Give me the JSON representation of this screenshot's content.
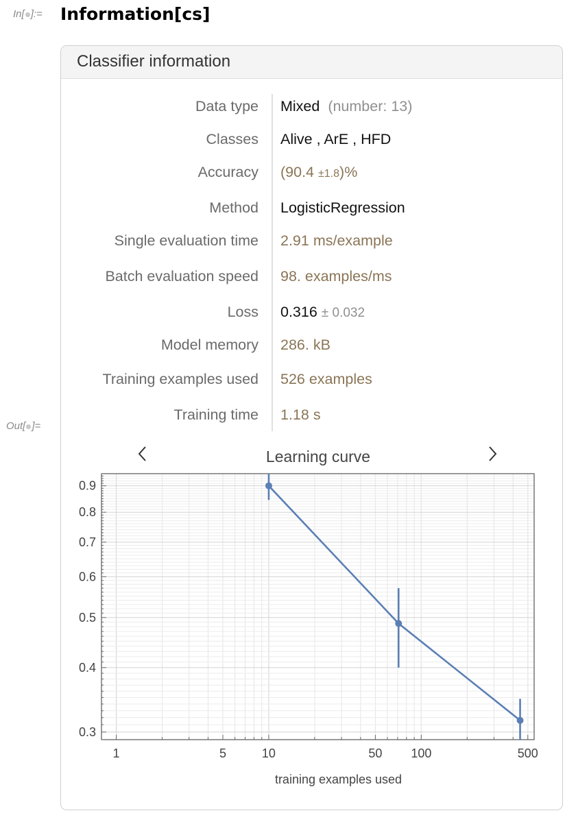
{
  "input": {
    "prompt_label_left": "In[",
    "prompt_label_right": "]:=",
    "code": "Information[cs]"
  },
  "output": {
    "prompt_label_left": "Out[",
    "prompt_label_right": "]="
  },
  "panel": {
    "title": "Classifier information",
    "rows": {
      "data_type": {
        "key": "Data type",
        "value": "Mixed",
        "note": "(number: 13)"
      },
      "classes": {
        "key": "Classes",
        "values": [
          "Alive",
          "ArE",
          "HFD"
        ],
        "separator": " , "
      },
      "accuracy": {
        "key": "Accuracy",
        "open": "(90.4",
        "pm": "±1.8",
        "close": ")%"
      },
      "method": {
        "key": "Method",
        "value": "LogisticRegression"
      },
      "single_eval": {
        "key": "Single evaluation time",
        "value": "2.91 ms/example"
      },
      "batch_eval": {
        "key": "Batch evaluation speed",
        "value": "98. examples/ms"
      },
      "loss": {
        "key": "Loss",
        "value": "0.316",
        "pm": "± 0.032"
      },
      "model_memory": {
        "key": "Model memory",
        "value": "286. kB"
      },
      "training_examples": {
        "key": "Training examples used",
        "value": "526 examples"
      },
      "training_time": {
        "key": "Training time",
        "value": "1.18 s"
      }
    },
    "nav": {
      "prev": "‹",
      "next": "›"
    }
  },
  "chart_data": {
    "type": "line",
    "title": "Learning curve",
    "xlabel": "training examples used",
    "ylabel": "",
    "xscale": "log",
    "yscale": "log",
    "xlim": [
      0.8,
      550
    ],
    "ylim": [
      0.29,
      0.95
    ],
    "grid": true,
    "color": "#5b7fb5",
    "x_ticks": [
      "1",
      "5",
      "10",
      "50",
      "100",
      "500"
    ],
    "y_ticks": [
      "0.3",
      "0.4",
      "0.5",
      "0.6",
      "0.7",
      "0.8",
      "0.9"
    ],
    "series": [
      {
        "points": [
          {
            "x": 10,
            "y": 0.9,
            "err_low": 0.845,
            "err_high": 0.95
          },
          {
            "x": 71,
            "y": 0.487,
            "err_low": 0.4,
            "err_high": 0.57
          },
          {
            "x": 445,
            "y": 0.316,
            "err_low": 0.284,
            "err_high": 0.348
          }
        ]
      }
    ]
  }
}
